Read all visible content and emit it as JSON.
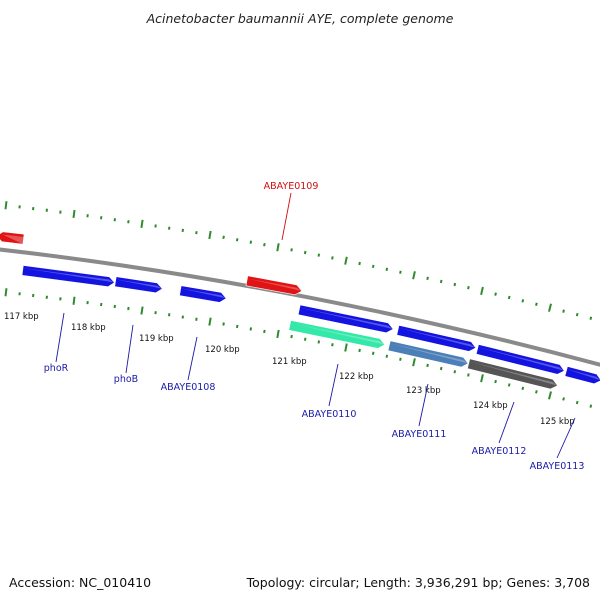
{
  "title": "Acinetobacter baumannii AYE, complete genome",
  "footer": {
    "accession": "Accession: NC_010410",
    "summary": "Topology: circular; Length: 3,936,291 bp; Genes: 3,708"
  },
  "colors": {
    "backbone": "#8a8a8a",
    "tick": "#2e8b2e",
    "gene_blue": "#1414e0",
    "gene_red": "#e01414",
    "gene_green": "#33e8a8",
    "gene_steel": "#4a7fb8",
    "gene_gray": "#555555",
    "label_blue": "#1a1aa8",
    "label_red": "#cc1111"
  },
  "scale": {
    "labels": [
      "117 kbp",
      "118 kbp",
      "119 kbp",
      "120 kbp",
      "121 kbp",
      "122 kbp",
      "123 kbp",
      "124 kbp",
      "125 kbp"
    ]
  },
  "features": [
    {
      "strand": "reverse",
      "color": "gene_red"
    },
    {
      "strand": "forward",
      "color": "gene_red"
    },
    {
      "strand": "forward",
      "color": "gene_blue"
    },
    {
      "strand": "forward",
      "color": "gene_blue"
    },
    {
      "strand": "forward",
      "color": "gene_blue"
    },
    {
      "strand": "forward",
      "color": "gene_blue"
    },
    {
      "strand": "forward",
      "color": "gene_blue"
    },
    {
      "strand": "forward",
      "color": "gene_blue"
    },
    {
      "strand": "forward",
      "color": "gene_blue"
    },
    {
      "strand": "forward",
      "color": "gene_green"
    },
    {
      "strand": "forward",
      "color": "gene_steel"
    },
    {
      "strand": "forward",
      "color": "gene_gray"
    }
  ],
  "gene_labels": [
    {
      "text": "ABAYE0109",
      "color": "label_red"
    },
    {
      "text": "phoR",
      "color": "label_blue"
    },
    {
      "text": "phoB",
      "color": "label_blue"
    },
    {
      "text": "ABAYE0108",
      "color": "label_blue"
    },
    {
      "text": "ABAYE0110",
      "color": "label_blue"
    },
    {
      "text": "ABAYE0111",
      "color": "label_blue"
    },
    {
      "text": "ABAYE0112",
      "color": "label_blue"
    },
    {
      "text": "ABAYE0113",
      "color": "label_blue"
    }
  ]
}
